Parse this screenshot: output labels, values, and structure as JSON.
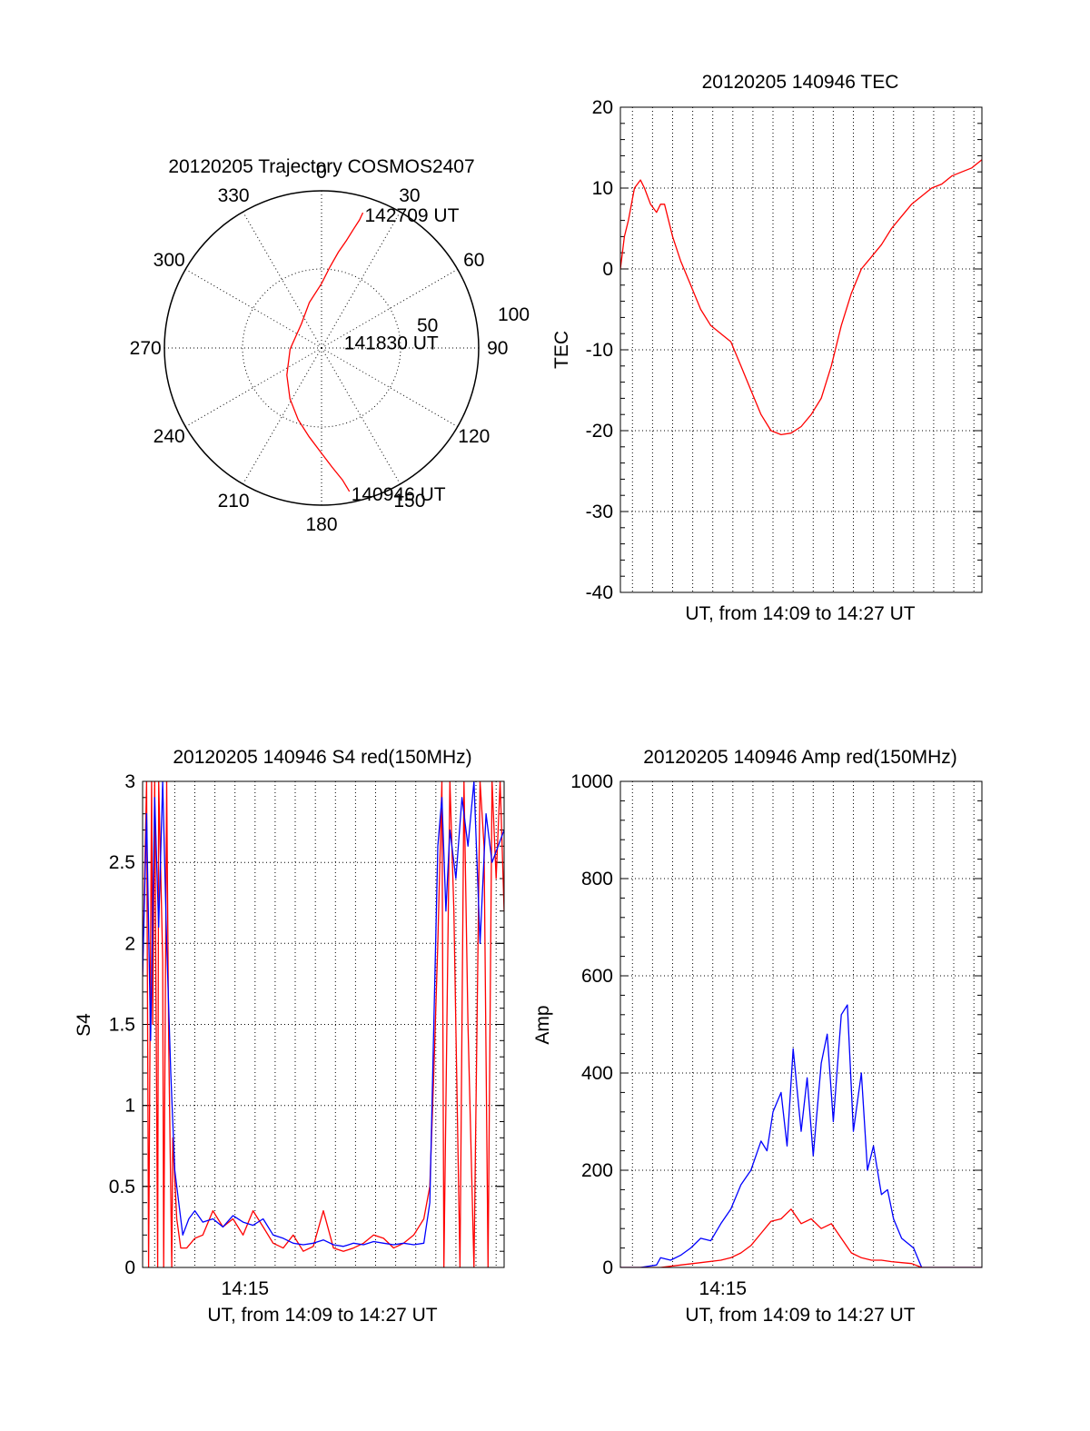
{
  "colors": {
    "red": "#ff0000",
    "blue": "#0000ff",
    "axis": "#000000"
  },
  "chart_data": [
    {
      "type": "polar",
      "title": "20120205 Trajectory COSMOS2407",
      "azimuth_labels": [
        "0",
        "30",
        "60",
        "90",
        "120",
        "150",
        "180",
        "210",
        "240",
        "270",
        "300",
        "330"
      ],
      "azimuths_deg": [
        0,
        30,
        60,
        90,
        120,
        150,
        180,
        210,
        240,
        270,
        300,
        330
      ],
      "radial_labels": [
        "50",
        "100"
      ],
      "radial_values": [
        50,
        100
      ],
      "r_max": 100,
      "annotations": [
        {
          "text": "142709 UT",
          "az": 17,
          "r": 90
        },
        {
          "text": "141830 UT",
          "az": 70,
          "r": 14
        },
        {
          "text": "140946 UT",
          "az": 169,
          "r": 93
        }
      ],
      "series": [
        {
          "color": "red",
          "az": [
            169,
            171,
            175,
            180,
            188,
            198,
            212,
            232,
            268,
            320,
            345,
            0,
            6,
            10,
            13,
            15,
            16.5,
            17
          ],
          "r": [
            93,
            85,
            76,
            67,
            57,
            48,
            38,
            28,
            20,
            20,
            30,
            41,
            52,
            62,
            70,
            78,
            85,
            90
          ]
        }
      ]
    },
    {
      "type": "line",
      "title": "20120205 140946 TEC",
      "xlabel": "UT, from 14:09 to 14:27 UT",
      "ylabel": "TEC",
      "xlim": [
        0,
        18
      ],
      "ylim": [
        -40,
        20
      ],
      "yticks": [
        -40,
        -30,
        -20,
        -10,
        0,
        10,
        20
      ],
      "ytick_labels": [
        "-40",
        "-30",
        "-20",
        "-10",
        "0",
        "10",
        "20"
      ],
      "xgrid": [
        0.6,
        1.6,
        2.6,
        3.6,
        4.6,
        5.6,
        6.6,
        7.6,
        8.6,
        9.6,
        10.6,
        11.6,
        12.6,
        13.6,
        14.6,
        15.6,
        16.6,
        17.6
      ],
      "series": [
        {
          "color": "red",
          "x": [
            0,
            0.2,
            0.4,
            0.7,
            1.0,
            1.2,
            1.5,
            1.8,
            2.0,
            2.2,
            2.6,
            3.0,
            3.5,
            4.0,
            4.5,
            5.0,
            5.5,
            6.0,
            6.5,
            7.0,
            7.5,
            8.0,
            8.5,
            9.0,
            9.5,
            10.0,
            10.5,
            11.0,
            11.5,
            12.0,
            12.5,
            13.0,
            13.5,
            14.0,
            14.5,
            15.0,
            15.5,
            16.0,
            16.5,
            17.0,
            17.5,
            18.0
          ],
          "y": [
            0,
            4,
            6,
            10,
            11,
            10,
            8,
            7,
            8,
            8,
            4,
            1,
            -2,
            -5,
            -7,
            -8,
            -9,
            -12,
            -15,
            -18,
            -20,
            -20.5,
            -20.3,
            -19.5,
            -18,
            -16,
            -12,
            -7,
            -3,
            0,
            1.5,
            3,
            5,
            6.5,
            8,
            9,
            10,
            10.5,
            11.5,
            12,
            12.5,
            13.5
          ]
        }
      ]
    },
    {
      "type": "line",
      "title": "20120205 140946 S4 red(150MHz)",
      "xlabel": "UT, from 14:09 to 14:27 UT",
      "ylabel": "S4",
      "xlim": [
        0,
        18
      ],
      "ylim": [
        0,
        3
      ],
      "yticks": [
        0,
        0.5,
        1,
        1.5,
        2,
        2.5,
        3
      ],
      "ytick_labels": [
        "0",
        "0.5",
        "1",
        "1.5",
        "2",
        "2.5",
        "3"
      ],
      "xtick_labels": [
        {
          "x": 5.1,
          "label": "14:15"
        }
      ],
      "xgrid": [
        0.6,
        1.6,
        2.6,
        3.6,
        4.6,
        5.6,
        6.6,
        7.6,
        8.6,
        9.6,
        10.6,
        11.6,
        12.6,
        13.6,
        14.6,
        15.6,
        16.6,
        17.6
      ],
      "series": [
        {
          "color": "red",
          "x": [
            0,
            0.2,
            0.3,
            0.45,
            0.5,
            0.6,
            0.75,
            0.8,
            1.0,
            1.05,
            1.2,
            1.3,
            1.45,
            1.5,
            1.7,
            1.9,
            2.2,
            2.6,
            3.0,
            3.5,
            4.0,
            4.5,
            5.0,
            5.5,
            6.0,
            6.5,
            7.0,
            7.5,
            8.0,
            8.5,
            9.0,
            9.5,
            10.0,
            10.5,
            11.0,
            11.5,
            12.0,
            12.5,
            13.0,
            13.5,
            14.0,
            14.3,
            14.5,
            14.7,
            14.9,
            15.0,
            15.3,
            15.5,
            15.8,
            16.0,
            16.2,
            16.5,
            16.8,
            17.0,
            17.2,
            17.4,
            17.6,
            17.8,
            18.0
          ],
          "y": [
            1.8,
            3.0,
            0.0,
            3.0,
            1.5,
            3.0,
            0.0,
            3.0,
            1.9,
            0.0,
            3.0,
            1.4,
            0.0,
            0.8,
            0.3,
            0.12,
            0.12,
            0.18,
            0.2,
            0.35,
            0.25,
            0.3,
            0.2,
            0.35,
            0.25,
            0.15,
            0.12,
            0.2,
            0.1,
            0.13,
            0.35,
            0.12,
            0.1,
            0.12,
            0.15,
            0.2,
            0.18,
            0.12,
            0.15,
            0.2,
            0.3,
            0.5,
            1.2,
            2.0,
            3.0,
            0.0,
            3.0,
            2.2,
            0.0,
            3.0,
            1.5,
            0.0,
            3.0,
            2.6,
            0.0,
            3.0,
            2.4,
            3.0,
            2.2
          ]
        },
        {
          "color": "blue",
          "x": [
            0,
            0.2,
            0.4,
            0.6,
            0.8,
            1.0,
            1.2,
            1.4,
            1.6,
            1.8,
            2.0,
            2.3,
            2.6,
            3.0,
            3.5,
            4.0,
            4.5,
            5.0,
            5.5,
            6.0,
            6.5,
            7.0,
            7.5,
            8.0,
            8.5,
            9.0,
            9.5,
            10.0,
            10.5,
            11.0,
            11.5,
            12.0,
            12.5,
            13.0,
            13.5,
            14.0,
            14.3,
            14.5,
            14.7,
            14.9,
            15.1,
            15.3,
            15.6,
            15.9,
            16.2,
            16.5,
            16.8,
            17.1,
            17.4,
            17.7,
            18.0
          ],
          "y": [
            1.8,
            2.8,
            1.4,
            2.9,
            2.1,
            3.0,
            2.0,
            1.2,
            0.6,
            0.4,
            0.2,
            0.3,
            0.35,
            0.28,
            0.3,
            0.25,
            0.32,
            0.28,
            0.26,
            0.3,
            0.2,
            0.18,
            0.15,
            0.14,
            0.15,
            0.17,
            0.14,
            0.13,
            0.15,
            0.14,
            0.16,
            0.15,
            0.14,
            0.15,
            0.14,
            0.15,
            0.4,
            1.5,
            2.6,
            2.9,
            2.2,
            2.7,
            2.4,
            2.9,
            2.6,
            3.0,
            2.0,
            2.8,
            2.5,
            2.6,
            2.7
          ]
        }
      ]
    },
    {
      "type": "line",
      "title": "20120205 140946 Amp red(150MHz)",
      "xlabel": "UT, from 14:09 to 14:27 UT",
      "ylabel": "Amp",
      "xlim": [
        0,
        18
      ],
      "ylim": [
        0,
        1000
      ],
      "yticks": [
        0,
        200,
        400,
        600,
        800,
        1000
      ],
      "ytick_labels": [
        "0",
        "200",
        "400",
        "600",
        "800",
        "1000"
      ],
      "xtick_labels": [
        {
          "x": 5.1,
          "label": "14:15"
        }
      ],
      "xgrid": [
        0.6,
        1.6,
        2.6,
        3.6,
        4.6,
        5.6,
        6.6,
        7.6,
        8.6,
        9.6,
        10.6,
        11.6,
        12.6,
        13.6,
        14.6,
        15.6,
        16.6,
        17.6
      ],
      "series": [
        {
          "color": "blue",
          "x": [
            0,
            1.0,
            1.8,
            2.0,
            2.5,
            3.0,
            3.5,
            4.0,
            4.5,
            5.0,
            5.5,
            6.0,
            6.5,
            7.0,
            7.3,
            7.6,
            8.0,
            8.3,
            8.6,
            9.0,
            9.3,
            9.6,
            10.0,
            10.3,
            10.6,
            11.0,
            11.3,
            11.6,
            12.0,
            12.3,
            12.6,
            13.0,
            13.3,
            13.6,
            14.0,
            14.3,
            14.6,
            15.0,
            15.5,
            16.0,
            17.0,
            18.0
          ],
          "y": [
            0,
            0,
            5,
            20,
            15,
            25,
            40,
            60,
            55,
            90,
            120,
            170,
            200,
            260,
            240,
            320,
            360,
            250,
            450,
            280,
            390,
            230,
            420,
            480,
            300,
            520,
            540,
            280,
            400,
            200,
            250,
            150,
            160,
            100,
            60,
            50,
            40,
            0,
            0,
            0,
            0,
            0
          ]
        },
        {
          "color": "red",
          "x": [
            0,
            2.0,
            3.0,
            4.0,
            5.0,
            5.5,
            6.0,
            6.5,
            7.0,
            7.5,
            8.0,
            8.5,
            9.0,
            9.5,
            10.0,
            10.5,
            11.0,
            11.5,
            12.0,
            12.5,
            13.0,
            13.5,
            14.0,
            14.5,
            15.0,
            18.0
          ],
          "y": [
            0,
            0,
            5,
            10,
            15,
            20,
            30,
            45,
            70,
            95,
            100,
            120,
            90,
            100,
            80,
            90,
            60,
            30,
            20,
            15,
            15,
            12,
            10,
            8,
            0,
            0
          ]
        }
      ]
    }
  ]
}
